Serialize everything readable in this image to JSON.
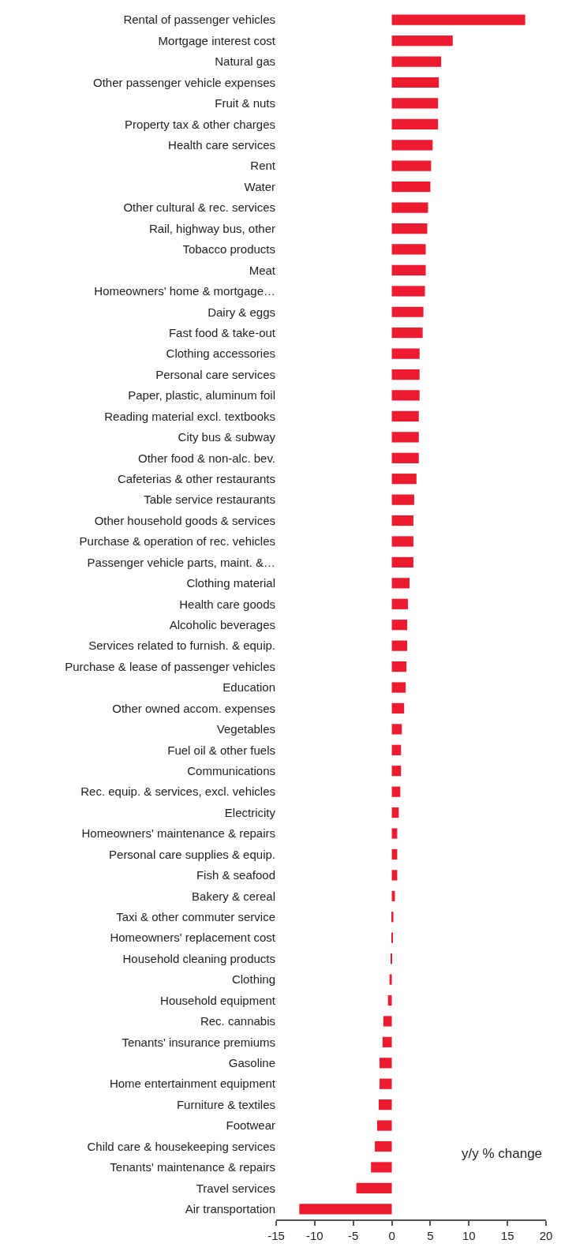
{
  "chart_data": {
    "type": "bar",
    "orientation": "horizontal",
    "color": "#ed1b2f",
    "categories": [
      "Rental of passenger vehicles",
      "Mortgage interest cost",
      "Natural gas",
      "Other passenger vehicle expenses",
      "Fruit & nuts",
      "Property tax & other charges",
      "Health care services",
      "Rent",
      "Water",
      "Other cultural & rec. services",
      "Rail, highway bus, other",
      "Tobacco products",
      "Meat",
      "Homeowners' home & mortgage…",
      "Dairy & eggs",
      "Fast food & take-out",
      "Clothing accessories",
      "Personal care services",
      "Paper, plastic, aluminum foil",
      "Reading material excl. textbooks",
      "City bus & subway",
      "Other food & non-alc. bev.",
      "Cafeterias & other restaurants",
      "Table service restaurants",
      "Other household goods & services",
      "Purchase & operation of rec. vehicles",
      "Passenger vehicle parts, maint. &…",
      "Clothing material",
      "Health care goods",
      "Alcoholic beverages",
      "Services related to furnish. & equip.",
      "Purchase & lease of passenger vehicles",
      "Education",
      "Other owned accom. expenses",
      "Vegetables",
      "Fuel oil & other fuels",
      "Communications",
      "Rec. equip. & services, excl. vehicles",
      "Electricity",
      "Homeowners' maintenance & repairs",
      "Personal care supplies & equip.",
      "Fish & seafood",
      "Bakery & cereal",
      "Taxi & other commuter service",
      "Homeowners' replacement cost",
      "Household cleaning products",
      "Clothing",
      "Household equipment",
      "Rec. cannabis",
      "Tenants' insurance premiums",
      "Gasoline",
      "Home entertainment equipment",
      "Furniture & textiles",
      "Footwear",
      "Child care & housekeeping services",
      "Tenants' maintenance & repairs",
      "Travel services",
      "Air transportation"
    ],
    "values": [
      17.3,
      7.9,
      6.4,
      6.1,
      6.0,
      6.0,
      5.3,
      5.1,
      5.0,
      4.7,
      4.6,
      4.4,
      4.4,
      4.3,
      4.1,
      4.0,
      3.6,
      3.6,
      3.6,
      3.5,
      3.5,
      3.5,
      3.2,
      2.9,
      2.8,
      2.8,
      2.8,
      2.3,
      2.1,
      2.0,
      2.0,
      1.9,
      1.8,
      1.6,
      1.3,
      1.2,
      1.2,
      1.1,
      0.9,
      0.7,
      0.7,
      0.7,
      0.4,
      0.2,
      0.1,
      -0.1,
      -0.3,
      -0.5,
      -1.1,
      -1.2,
      -1.6,
      -1.6,
      -1.7,
      -1.9,
      -2.2,
      -2.7,
      -4.6,
      -12.0
    ],
    "xlim": [
      -15,
      20
    ],
    "xticks": [
      -15,
      -10,
      -5,
      0,
      5,
      10,
      15,
      20
    ],
    "annotations": [
      "y/y % change"
    ],
    "legend": false
  }
}
